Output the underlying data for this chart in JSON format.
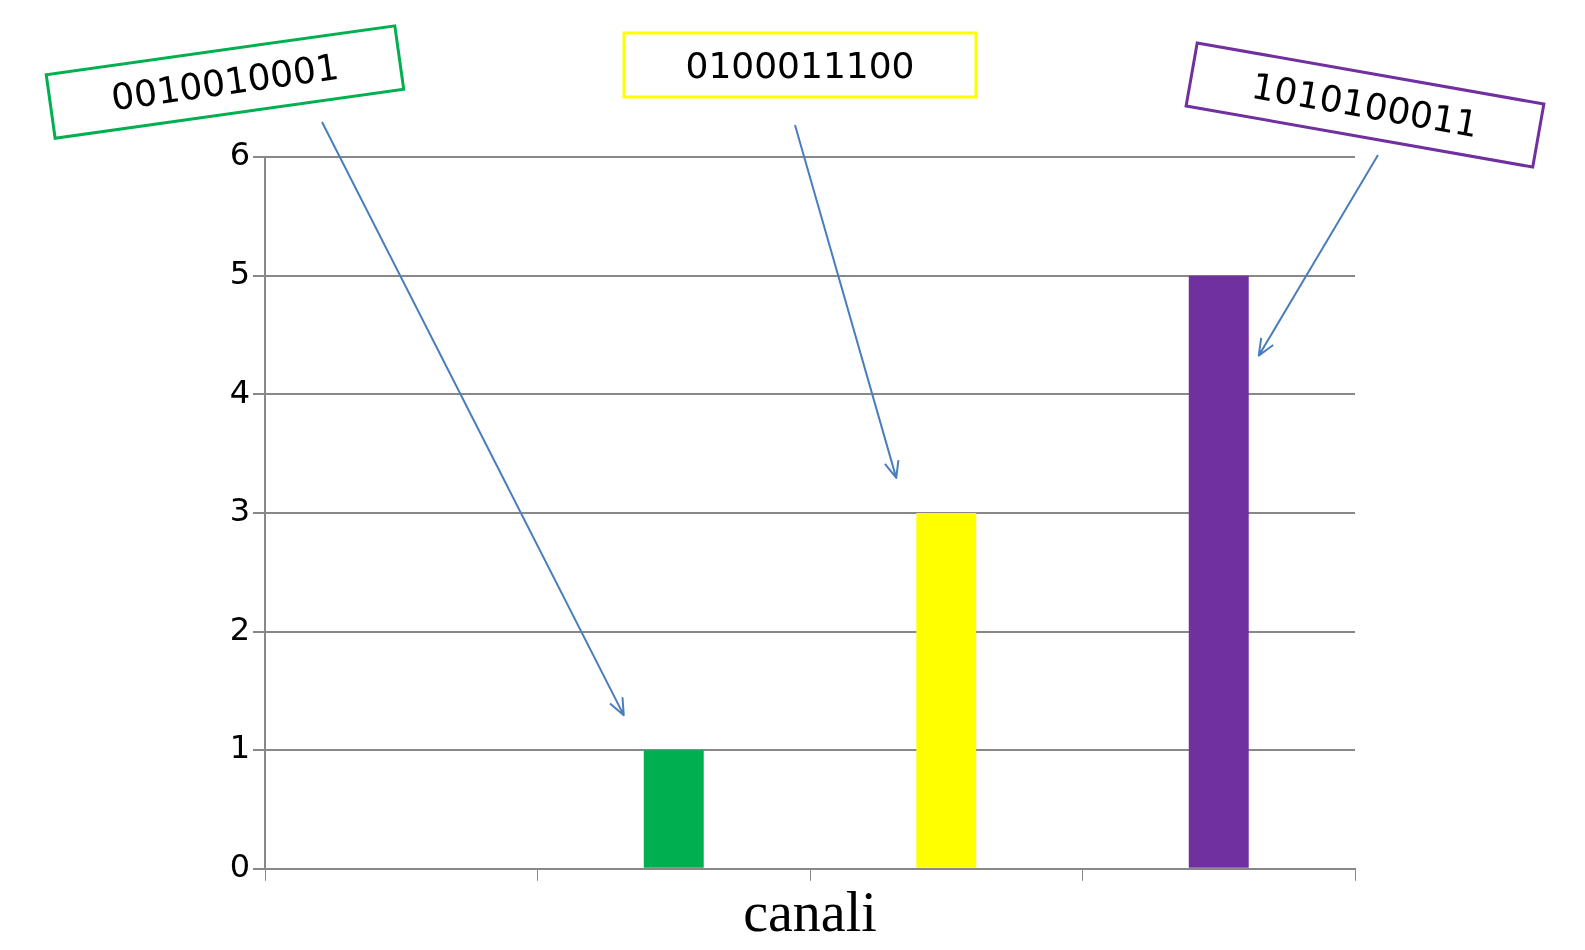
{
  "chart_data": {
    "type": "bar",
    "xlabel": "canali",
    "categories": [
      null,
      null,
      null,
      null
    ],
    "values": [
      null,
      1,
      3,
      5
    ],
    "colors": [
      "#00b050",
      "#00b050",
      "#ffff00",
      "#7030a0"
    ],
    "ylim": [
      0,
      6
    ],
    "yticks": [
      0,
      1,
      2,
      3,
      4,
      5,
      6
    ],
    "grid": "y",
    "annotations": [
      "0010010001",
      "0100011100",
      "1010100011"
    ]
  }
}
